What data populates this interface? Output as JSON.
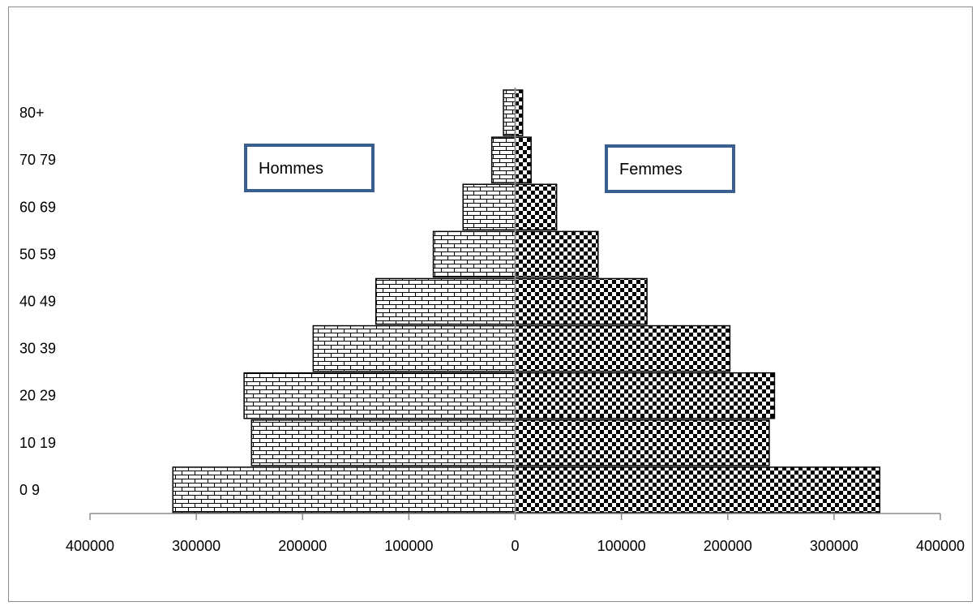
{
  "chart_data": {
    "type": "bar",
    "orientation": "horizontal",
    "subtype": "population-pyramid",
    "categories": [
      "0 9",
      "10 19",
      "20 29",
      "30 39",
      "40 49",
      "50 59",
      "60 69",
      "70 79",
      "80+"
    ],
    "series": [
      {
        "name": "Hommes",
        "side": "left",
        "pattern": "brick",
        "values": [
          322000,
          248000,
          255000,
          190000,
          131000,
          77000,
          49000,
          22000,
          11000
        ]
      },
      {
        "name": "Femmes",
        "side": "right",
        "pattern": "checkerboard",
        "values": [
          343000,
          239000,
          244000,
          202000,
          124000,
          78000,
          39000,
          15000,
          7000
        ]
      }
    ],
    "xtick_labels": [
      "400000",
      "300000",
      "200000",
      "100000",
      "0",
      "100000",
      "200000",
      "300000",
      "400000"
    ],
    "xlim": [
      -400000,
      400000
    ],
    "title": "",
    "xlabel": "",
    "ylabel": "",
    "grid": false,
    "legend_placement": "inside-top",
    "colors": {
      "bar_stroke": "#000000",
      "bar_fill": "#ffffff",
      "legend_border": "#3a5f8f",
      "axis": "#8c8c8c"
    }
  }
}
